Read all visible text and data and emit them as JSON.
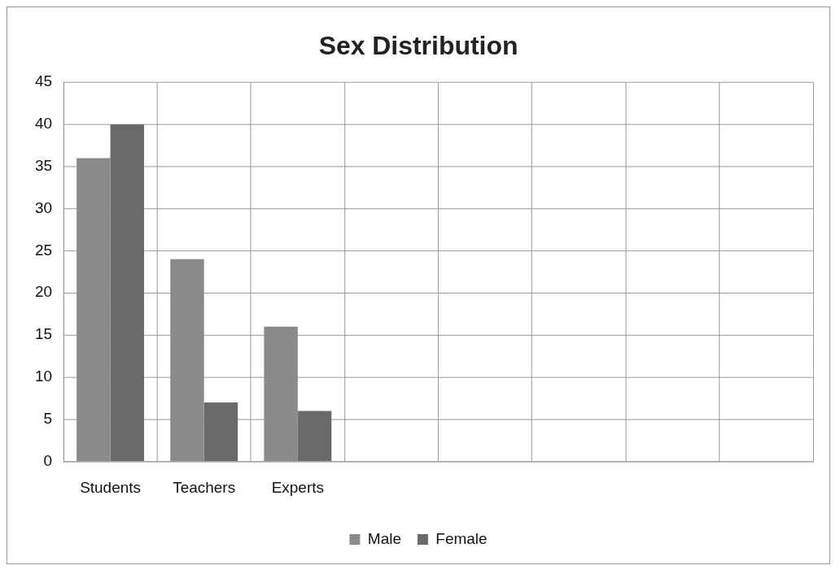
{
  "chart_data": {
    "type": "bar",
    "title": "Sex Distribution",
    "categories": [
      "Students",
      "Teachers",
      "Experts",
      null,
      null,
      null,
      null,
      null
    ],
    "series": [
      {
        "name": "Male",
        "color": "#8a8a8a",
        "values": [
          36,
          24,
          16,
          null,
          null,
          null,
          null,
          null
        ]
      },
      {
        "name": "Female",
        "color": "#6a6a6a",
        "values": [
          40,
          7,
          6,
          null,
          null,
          null,
          null,
          null
        ]
      }
    ],
    "ylim": [
      0,
      45
    ],
    "yticks": [
      0,
      5,
      10,
      15,
      20,
      25,
      30,
      35,
      40,
      45
    ],
    "grid": true,
    "legend": "bottom"
  }
}
